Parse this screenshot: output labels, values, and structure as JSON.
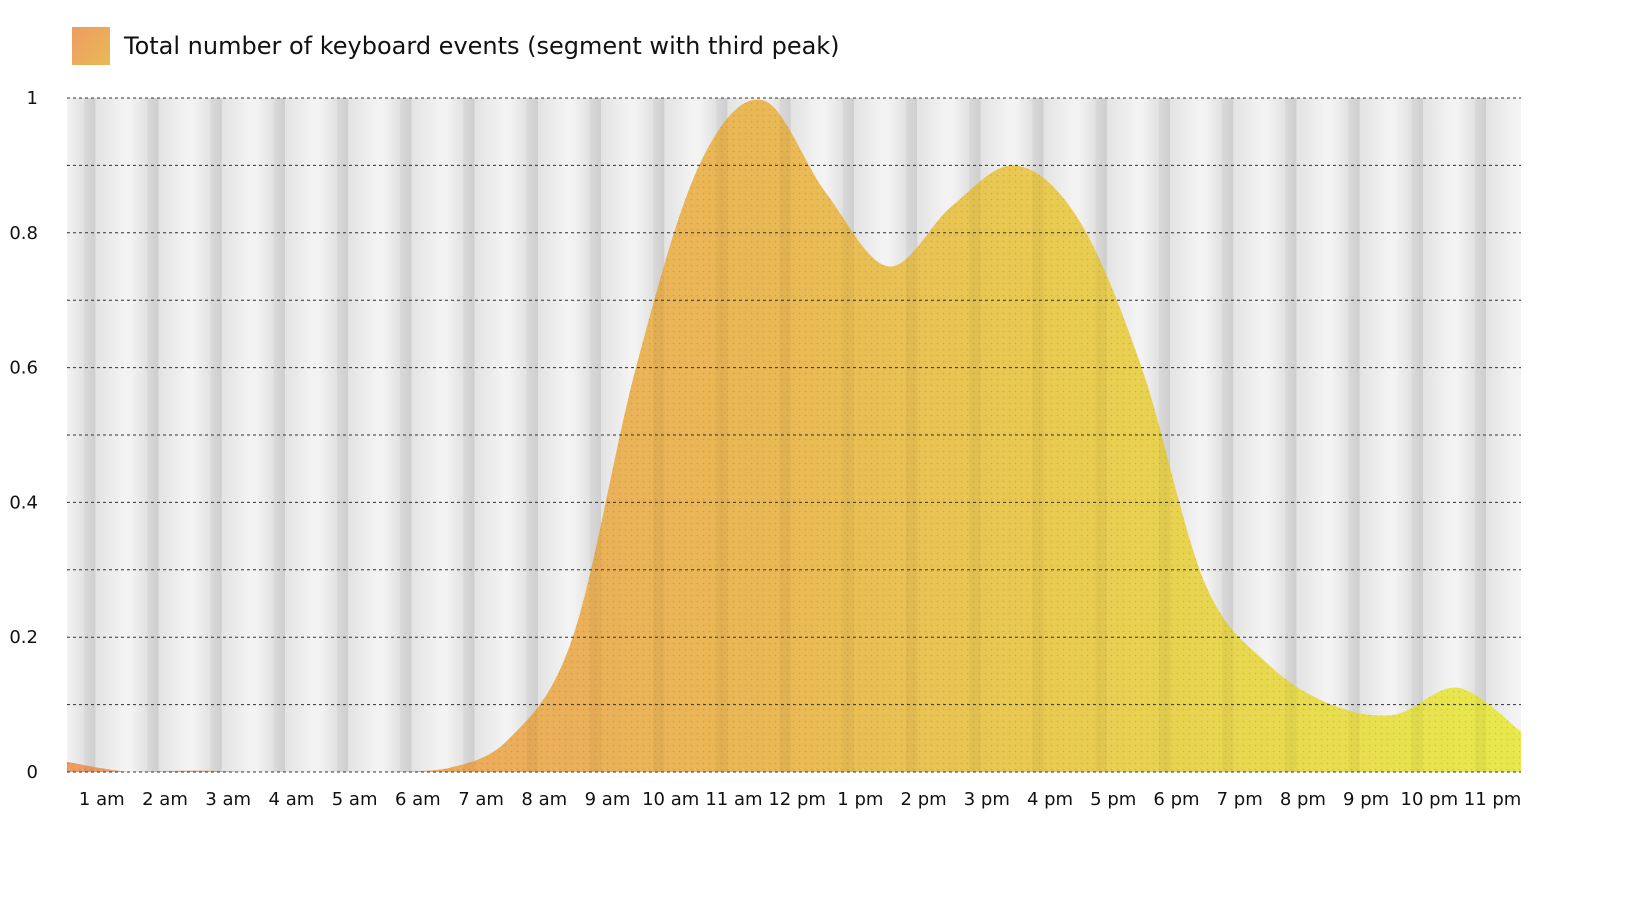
{
  "chart_data": {
    "type": "area",
    "series": [
      {
        "name": "Total number of keyboard events (segment with third peak)",
        "values": [
          0.015,
          0.0,
          0.002,
          0.0,
          0.0,
          0.0,
          0.005,
          0.05,
          0.2,
          0.6,
          0.9,
          0.997,
          0.86,
          0.75,
          0.84,
          0.9,
          0.82,
          0.6,
          0.28,
          0.16,
          0.1,
          0.085,
          0.125,
          0.06
        ]
      }
    ],
    "x_tick_labels": [
      "1 am",
      "2 am",
      "3 am",
      "4 am",
      "5 am",
      "6 am",
      "7 am",
      "8 am",
      "9 am",
      "10 am",
      "11 am",
      "12 pm",
      "1 pm",
      "2 pm",
      "3 pm",
      "4 pm",
      "5 pm",
      "6 pm",
      "7 pm",
      "8 pm",
      "9 pm",
      "10 pm",
      "11 pm"
    ],
    "y_ticks": [
      "0",
      "0.2",
      "0.4",
      "0.6",
      "0.8",
      "1"
    ],
    "y_tick_values": [
      0,
      0.2,
      0.4,
      0.6,
      0.8,
      1
    ],
    "ylim": [
      0,
      1
    ],
    "grid": true,
    "legend_position": "top-left",
    "colors": {
      "gradient_start": "#ee9b62",
      "gradient_mid": "#e9ba55",
      "gradient_end": "#e8e94d",
      "grid_line": "#333333",
      "band_light": "#f1f1f1",
      "band_dark": "#d9d9d9"
    }
  }
}
